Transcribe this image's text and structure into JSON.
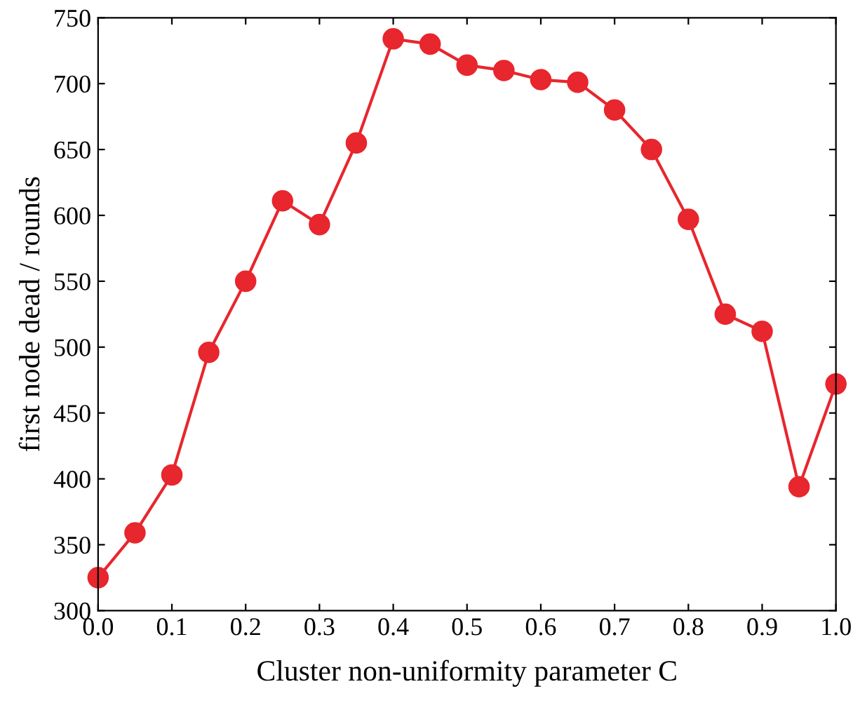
{
  "chart_data": {
    "type": "line",
    "xlabel": "Cluster non-uniformity parameter C",
    "ylabel": "first node dead / rounds",
    "x": [
      0,
      0.05,
      0.1,
      0.15,
      0.2,
      0.25,
      0.3,
      0.35,
      0.4,
      0.45,
      0.5,
      0.55,
      0.6,
      0.65,
      0.7,
      0.75,
      0.8,
      0.85,
      0.9,
      0.95,
      1.0
    ],
    "series": [
      {
        "color": "#e8262d",
        "values": [
          325,
          359,
          403,
          496,
          550,
          611,
          593,
          655,
          734,
          730,
          714,
          710,
          703,
          701,
          680,
          650,
          597,
          525,
          512,
          394,
          472
        ]
      }
    ],
    "xlim": [
      0,
      1
    ],
    "xticks": [
      {
        "value": 0,
        "label": "0.0"
      },
      0.1,
      0.2,
      0.3,
      0.4,
      0.5,
      0.6,
      0.7,
      0.8,
      0.9,
      {
        "value": 1,
        "label": "1.0"
      }
    ],
    "ylim": [
      300,
      750
    ],
    "yticks": [
      300,
      350,
      400,
      450,
      500,
      550,
      600,
      650,
      700,
      750
    ],
    "marker": "circle",
    "line_style": "solid",
    "grid": false,
    "legend": false
  }
}
